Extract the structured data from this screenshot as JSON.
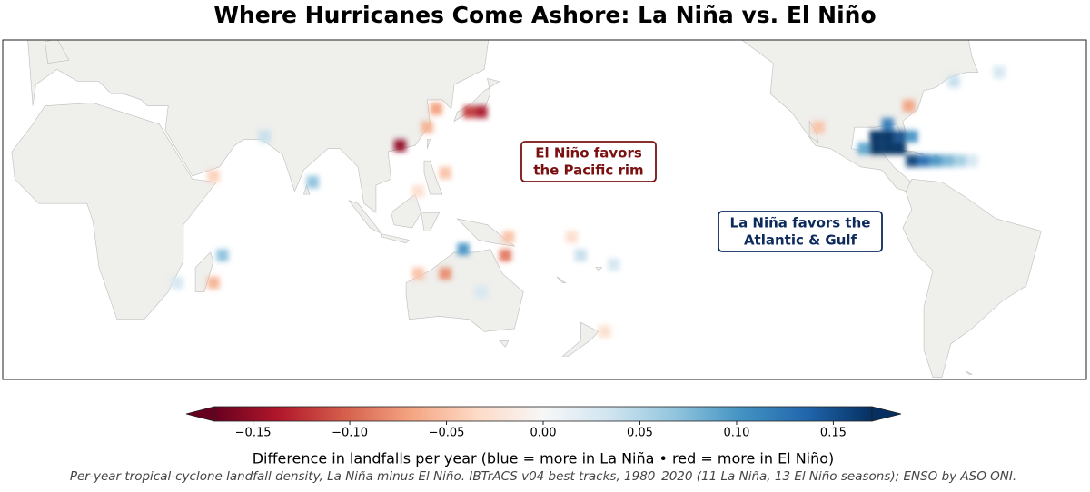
{
  "chart_data": {
    "type": "heatmap-map",
    "title": "Where Hurricanes Come Ashore: La Niña vs. El Niño",
    "annotations": [
      {
        "lines": [
          "El Niño favors",
          "the Pacific rim"
        ],
        "color": "#7a1010"
      },
      {
        "lines": [
          "La Niña favors the",
          "Atlantic & Gulf"
        ],
        "color": "#0d2a5c"
      }
    ],
    "lon": [
      270,
      274,
      278,
      282,
      270,
      274,
      278,
      282,
      286,
      290,
      294,
      298,
      302,
      266,
      274,
      281,
      251,
      296,
      311,
      112,
      139,
      135,
      124,
      121,
      127,
      118,
      83,
      67,
      50,
      53,
      50,
      38,
      133,
      147,
      127,
      118,
      148,
      172,
      169,
      183,
      180,
      139
    ],
    "lat": [
      26,
      26,
      26,
      26,
      22,
      22,
      22,
      18,
      18,
      18,
      18,
      18,
      18,
      22,
      30,
      36,
      29,
      44,
      47,
      23,
      34,
      34,
      35,
      29,
      14,
      8,
      11,
      26,
      13,
      -13,
      -22,
      -22,
      -11,
      -13,
      -19,
      -19,
      -7,
      -13,
      -7,
      -16,
      -38,
      -25
    ],
    "values": [
      0.17,
      0.17,
      0.15,
      0.1,
      0.17,
      0.17,
      0.17,
      0.16,
      0.13,
      0.1,
      0.08,
      0.06,
      0.03,
      0.09,
      0.12,
      -0.07,
      -0.05,
      0.04,
      0.03,
      -0.15,
      -0.14,
      -0.12,
      -0.07,
      -0.06,
      -0.05,
      -0.03,
      0.07,
      0.04,
      -0.04,
      0.07,
      -0.06,
      0.03,
      0.1,
      -0.09,
      -0.08,
      -0.05,
      -0.05,
      0.04,
      -0.03,
      0.03,
      -0.03,
      0.03
    ],
    "colorbar": {
      "clim": [
        -0.17,
        0.17
      ],
      "ticks": [
        {
          "value": -0.15,
          "label": "−0.15"
        },
        {
          "value": -0.1,
          "label": "−0.10"
        },
        {
          "value": -0.05,
          "label": "−0.05"
        },
        {
          "value": 0,
          "label": "0.00"
        },
        0.05,
        {
          "value": 0.1,
          "label": "0.10"
        },
        0.15
      ],
      "label": "Difference in landfalls per year  (blue = more in La Niña   •   red = more in El Niño)"
    },
    "footnote": "Per-year tropical-cyclone landfall density, La Niña minus El Niño. IBTrACS v04 best tracks, 1980–2020 (11 La Niña, 13 El Niño seasons); ENSO by ASO ONI."
  }
}
